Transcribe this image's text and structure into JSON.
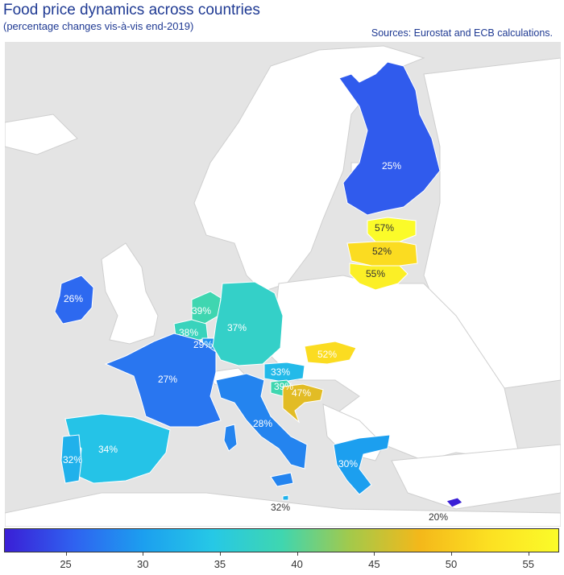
{
  "header": {
    "title": "Food price dynamics across countries",
    "subtitle": "(percentage changes vis-à-vis end-2019)",
    "source": "Sources: Eurostat and ECB calculations."
  },
  "legend": {
    "min": 21,
    "max": 57,
    "ticks": [
      "25",
      "30",
      "35",
      "40",
      "45",
      "50",
      "55"
    ],
    "tick_values": [
      25,
      30,
      35,
      40,
      45,
      50,
      55
    ],
    "colors": [
      "#3a1fd6",
      "#2f62f0",
      "#1c9fef",
      "#26c8e6",
      "#3fd6b0",
      "#a4c94a",
      "#f4b81a",
      "#fce022",
      "#fbfb29"
    ]
  },
  "countries": [
    {
      "name": "Finland",
      "value": 25,
      "label": "25%"
    },
    {
      "name": "Estonia",
      "value": 57,
      "label": "57%"
    },
    {
      "name": "Latvia",
      "value": 52,
      "label": "52%"
    },
    {
      "name": "Lithuania",
      "value": 55,
      "label": "55%"
    },
    {
      "name": "Ireland",
      "value": 26,
      "label": "26%"
    },
    {
      "name": "Netherlands",
      "value": 39,
      "label": "39%"
    },
    {
      "name": "Belgium",
      "value": 38,
      "label": "38%"
    },
    {
      "name": "Luxembourg",
      "value": 29,
      "label": "29%"
    },
    {
      "name": "Germany",
      "value": 37,
      "label": "37%"
    },
    {
      "name": "Slovakia",
      "value": 52,
      "label": "52%"
    },
    {
      "name": "France",
      "value": 27,
      "label": "27%"
    },
    {
      "name": "Austria",
      "value": 33,
      "label": "33%"
    },
    {
      "name": "Slovenia",
      "value": 39,
      "label": "39%"
    },
    {
      "name": "Croatia",
      "value": 47,
      "label": "47%"
    },
    {
      "name": "Italy",
      "value": 28,
      "label": "28%"
    },
    {
      "name": "Spain",
      "value": 34,
      "label": "34%"
    },
    {
      "name": "Portugal",
      "value": 32,
      "label": "32%"
    },
    {
      "name": "Greece",
      "value": 30,
      "label": "30%"
    },
    {
      "name": "Malta",
      "value": 32,
      "label": "32%"
    },
    {
      "name": "Cyprus",
      "value": 20,
      "label": "20%"
    }
  ]
}
